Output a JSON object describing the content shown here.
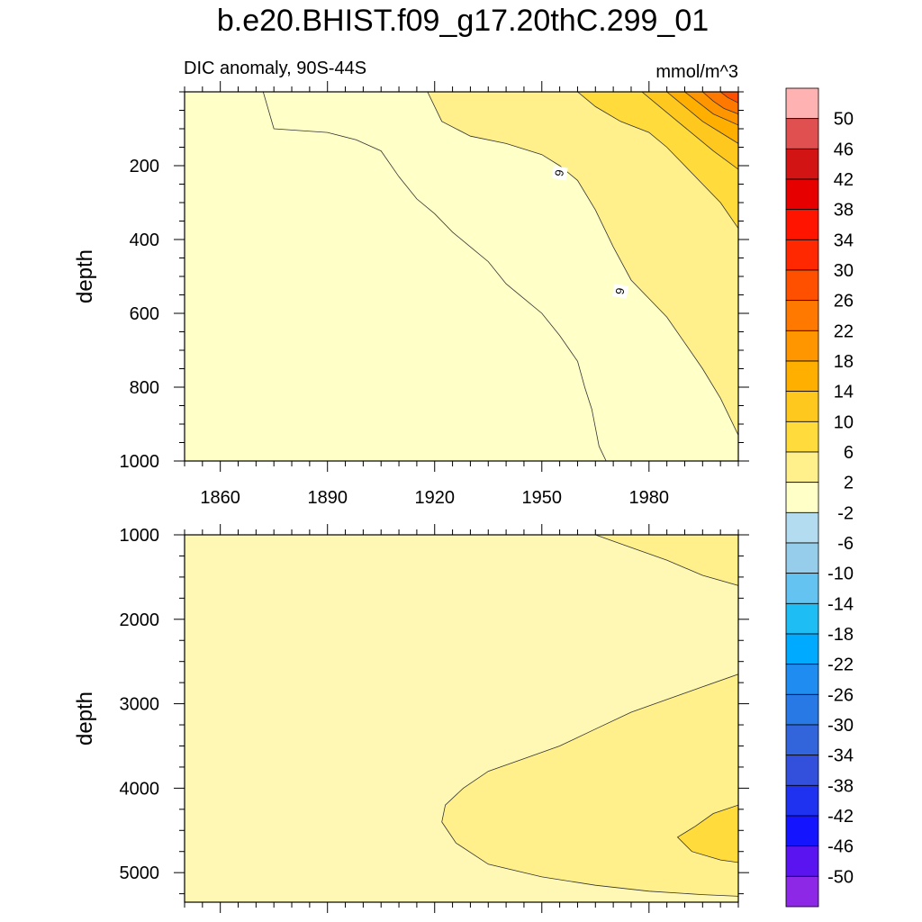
{
  "chart_data": {
    "type": "contour",
    "title": "b.e20.BHIST.f09_g17.20thC.299_01",
    "subtitle_left": "DIC anomaly, 90S-44S",
    "units": "mmol/m^3",
    "x_ticks": [
      1860,
      1890,
      1920,
      1950,
      1980
    ],
    "xlim": [
      1850,
      2005
    ],
    "panels": [
      {
        "name": "upper",
        "ylabel": "depth",
        "ylim": [
          0,
          1000
        ],
        "y_ticks": [
          200,
          400,
          600,
          800,
          1000
        ],
        "contour_labels": [
          {
            "text": "6",
            "x": 1955,
            "y": 220
          },
          {
            "text": "6",
            "x": 1972,
            "y": 540
          }
        ],
        "boundaries": [
          {
            "level": 2,
            "points": [
              [
                1872,
                0
              ],
              [
                1875,
                100
              ],
              [
                1890,
                110
              ],
              [
                1898,
                130
              ],
              [
                1905,
                160
              ],
              [
                1910,
                230
              ],
              [
                1915,
                290
              ],
              [
                1920,
                330
              ],
              [
                1925,
                380
              ],
              [
                1930,
                420
              ],
              [
                1935,
                460
              ],
              [
                1940,
                520
              ],
              [
                1945,
                560
              ],
              [
                1950,
                600
              ],
              [
                1955,
                660
              ],
              [
                1960,
                730
              ],
              [
                1962,
                800
              ],
              [
                1964,
                860
              ],
              [
                1966,
                960
              ],
              [
                1968,
                1000
              ]
            ]
          },
          {
            "level": 6,
            "points": [
              [
                1918,
                0
              ],
              [
                1922,
                80
              ],
              [
                1930,
                120
              ],
              [
                1940,
                140
              ],
              [
                1950,
                170
              ],
              [
                1955,
                200
              ],
              [
                1960,
                240
              ],
              [
                1965,
                320
              ],
              [
                1970,
                420
              ],
              [
                1975,
                510
              ],
              [
                1980,
                560
              ],
              [
                1985,
                610
              ],
              [
                1990,
                680
              ],
              [
                1995,
                750
              ],
              [
                2000,
                830
              ],
              [
                2005,
                930
              ]
            ]
          },
          {
            "level": 10,
            "points": [
              [
                1960,
                0
              ],
              [
                1965,
                40
              ],
              [
                1972,
                80
              ],
              [
                1980,
                110
              ],
              [
                1985,
                150
              ],
              [
                1990,
                200
              ],
              [
                1995,
                250
              ],
              [
                2000,
                300
              ],
              [
                2005,
                370
              ]
            ]
          },
          {
            "level": 14,
            "points": [
              [
                1978,
                0
              ],
              [
                1983,
                40
              ],
              [
                1988,
                80
              ],
              [
                1993,
                120
              ],
              [
                1998,
                160
              ],
              [
                2005,
                210
              ]
            ]
          },
          {
            "level": 18,
            "points": [
              [
                1985,
                0
              ],
              [
                1990,
                40
              ],
              [
                1995,
                80
              ],
              [
                2000,
                110
              ],
              [
                2005,
                140
              ]
            ]
          },
          {
            "level": 22,
            "points": [
              [
                1990,
                0
              ],
              [
                1994,
                30
              ],
              [
                1998,
                60
              ],
              [
                2005,
                90
              ]
            ]
          },
          {
            "level": 26,
            "points": [
              [
                1995,
                0
              ],
              [
                1998,
                25
              ],
              [
                2001,
                45
              ],
              [
                2005,
                60
              ]
            ]
          },
          {
            "level": 30,
            "points": [
              [
                2000,
                0
              ],
              [
                2002,
                15
              ],
              [
                2005,
                30
              ]
            ]
          }
        ]
      },
      {
        "name": "lower",
        "ylabel": "depth",
        "ylim": [
          1000,
          5350
        ],
        "y_ticks": [
          1000,
          2000,
          3000,
          4000,
          5000
        ],
        "regions": [
          {
            "level": 2,
            "points": [
              [
                1965,
                1000
              ],
              [
                1975,
                1150
              ],
              [
                1985,
                1300
              ],
              [
                1995,
                1480
              ],
              [
                2005,
                1600
              ],
              [
                2005,
                1000
              ]
            ]
          },
          {
            "level": 2,
            "points": [
              [
                2005,
                2650
              ],
              [
                1995,
                2800
              ],
              [
                1985,
                2950
              ],
              [
                1975,
                3100
              ],
              [
                1965,
                3300
              ],
              [
                1955,
                3500
              ],
              [
                1945,
                3650
              ],
              [
                1935,
                3800
              ],
              [
                1928,
                4000
              ],
              [
                1923,
                4200
              ],
              [
                1922,
                4400
              ],
              [
                1926,
                4650
              ],
              [
                1935,
                4900
              ],
              [
                1950,
                5050
              ],
              [
                1965,
                5150
              ],
              [
                1980,
                5220
              ],
              [
                1995,
                5260
              ],
              [
                2005,
                5280
              ]
            ]
          },
          {
            "level": 6,
            "points": [
              [
                2005,
                4200
              ],
              [
                1998,
                4300
              ],
              [
                1993,
                4450
              ],
              [
                1988,
                4580
              ],
              [
                1992,
                4750
              ],
              [
                2000,
                4850
              ],
              [
                2005,
                4880
              ]
            ]
          }
        ]
      }
    ],
    "colorbar": {
      "labels": [
        "50",
        "46",
        "42",
        "38",
        "34",
        "30",
        "26",
        "22",
        "18",
        "14",
        "10",
        "6",
        "2",
        "-2",
        "-6",
        "-10",
        "-14",
        "-18",
        "-22",
        "-26",
        "-30",
        "-34",
        "-38",
        "-42",
        "-46",
        "-50"
      ],
      "colors": [
        "#ffb2b2",
        "#e05050",
        "#d21414",
        "#e60000",
        "#ff1400",
        "#ff2800",
        "#ff5000",
        "#ff7800",
        "#ff9600",
        "#ffaf00",
        "#ffc81e",
        "#ffdc3c",
        "#fff08c",
        "#ffffc8",
        "#b4dcf0",
        "#96cdeb",
        "#64c3f0",
        "#1ebef5",
        "#00aaff",
        "#1e8cf0",
        "#2878e6",
        "#3264dc",
        "#3250dc",
        "#1e32f0",
        "#1414ff",
        "#5a14f0",
        "#8c28e6"
      ]
    }
  }
}
